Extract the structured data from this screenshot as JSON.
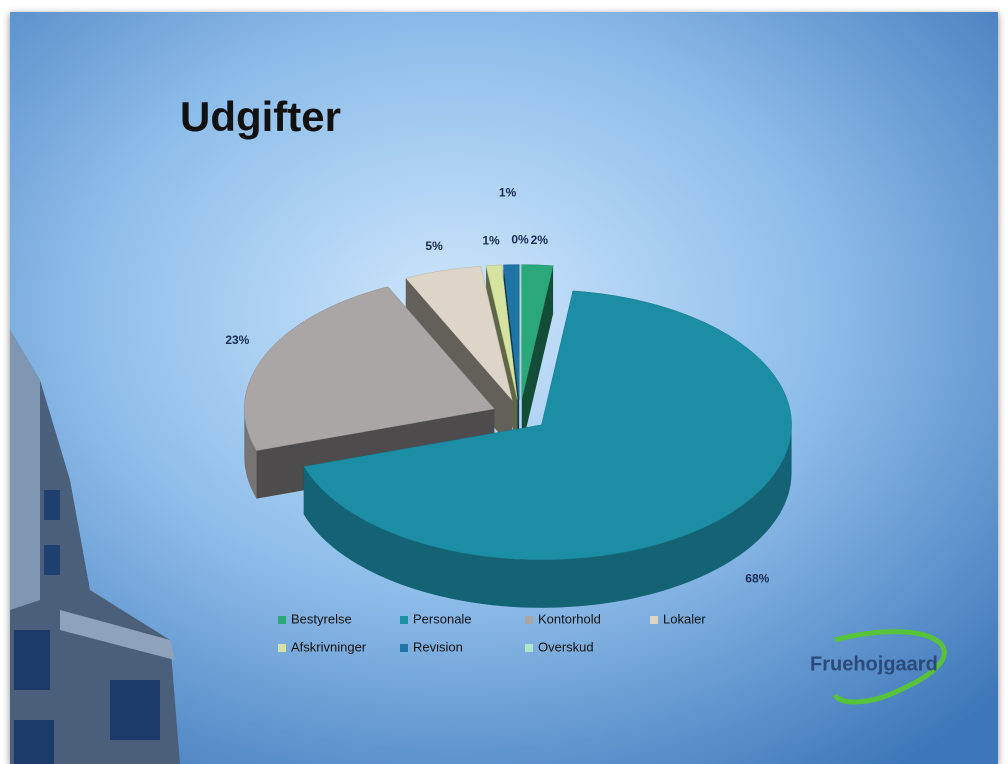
{
  "chart_data": {
    "type": "pie3d",
    "title": "Udgifter",
    "categories": [
      "Bestyrelse",
      "Personale",
      "Kontorhold",
      "Lokaler",
      "Afskrivninger",
      "Revision",
      "Overskud"
    ],
    "values": [
      2,
      68,
      23,
      5,
      1,
      1,
      0
    ],
    "value_labels": [
      "2%",
      "68%",
      "23%",
      "5%",
      "1%",
      "1%",
      "0%"
    ],
    "colors": [
      "#2aa87a",
      "#1b8ea6",
      "#aaa6a6",
      "#ddd6c8",
      "#d6e2a0",
      "#1f76a6",
      "#b0e6c8"
    ],
    "legend": "bottom"
  },
  "logo": "Fruehojgaard"
}
